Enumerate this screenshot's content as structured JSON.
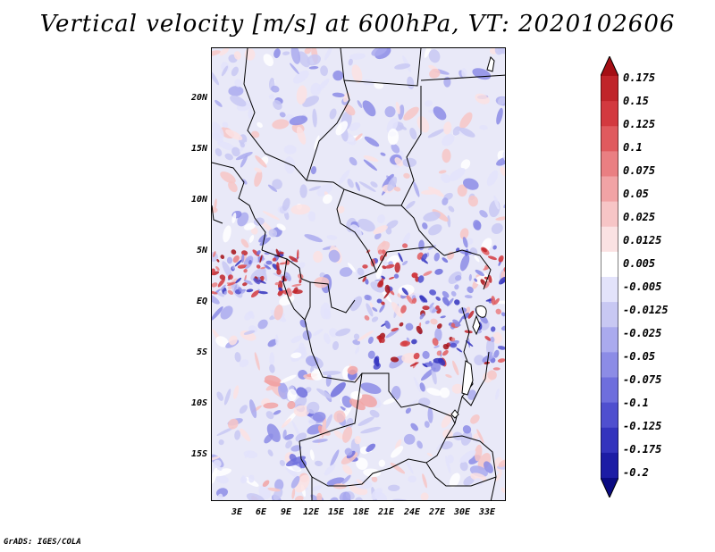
{
  "title": "Vertical velocity [m/s] at 600hPa, VT: 2020102606",
  "footer": "GrADS: IGES/COLA",
  "map": {
    "lat_labels": [
      "20N",
      "15N",
      "10N",
      "5N",
      "EQ",
      "5S",
      "10S",
      "15S"
    ],
    "lon_labels": [
      "3E",
      "6E",
      "9E",
      "12E",
      "15E",
      "18E",
      "21E",
      "24E",
      "27E",
      "30E",
      "33E"
    ]
  },
  "colorbar": {
    "labels": [
      "0.175",
      "0.15",
      "0.125",
      "0.1",
      "0.075",
      "0.05",
      "0.025",
      "0.0125",
      "0.005",
      "-0.005",
      "-0.0125",
      "-0.025",
      "-0.05",
      "-0.075",
      "-0.1",
      "-0.125",
      "-0.175",
      "-0.2"
    ],
    "colors": [
      "#a50f15",
      "#c0242a",
      "#d3393f",
      "#e05a5e",
      "#ea7f82",
      "#f1a3a5",
      "#f7c5c6",
      "#fbe2e3",
      "#ffffff",
      "#e3e3fb",
      "#c8c8f3",
      "#aaaaee",
      "#8c8ce6",
      "#6e6edd",
      "#4f4fcf",
      "#3333bd",
      "#1c1ca5",
      "#0b0b82"
    ]
  }
}
